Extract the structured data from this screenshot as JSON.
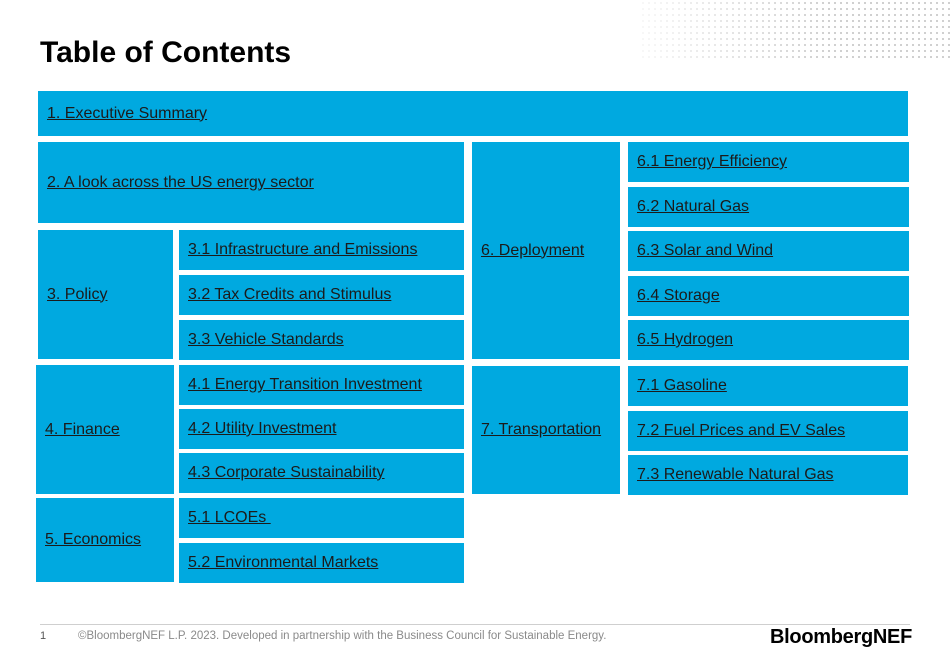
{
  "title": "Table of Contents",
  "toc": {
    "s1": "1. Executive Summary",
    "s2": "2. A look across the US energy sector",
    "s3": "3. Policy",
    "s3_1": "3.1 Infrastructure and Emissions",
    "s3_2": "3.2 Tax Credits and Stimulus",
    "s3_3": "3.3 Vehicle Standards",
    "s4": "4. Finance",
    "s4_1": "4.1 Energy Transition Investment",
    "s4_2": "4.2 Utility Investment",
    "s4_3": "4.3 Corporate Sustainability",
    "s5": "5. Economics",
    "s5_1": "5.1 LCOEs ",
    "s5_2": "5.2 Environmental Markets",
    "s6": "6. Deployment",
    "s6_1": "6.1 Energy Efficiency",
    "s6_2": "6.2 Natural Gas",
    "s6_3": "6.3 Solar and Wind",
    "s6_4": "6.4 Storage",
    "s6_5": "6.5 Hydrogen",
    "s7": "7. Transportation",
    "s7_1": "7.1 Gasoline",
    "s7_2": "7.2 Fuel Prices and EV Sales",
    "s7_3": "7.3 Renewable Natural Gas"
  },
  "footer": {
    "page_number": "1",
    "copyright": "©BloombergNEF L.P. 2023. Developed in partnership with the Business Council for Sustainable Energy.",
    "logo_part1": "Bloomberg",
    "logo_part2": "NEF"
  },
  "colors": {
    "box_fill": "#00a9e0",
    "link_text": "#1b1b1b"
  }
}
